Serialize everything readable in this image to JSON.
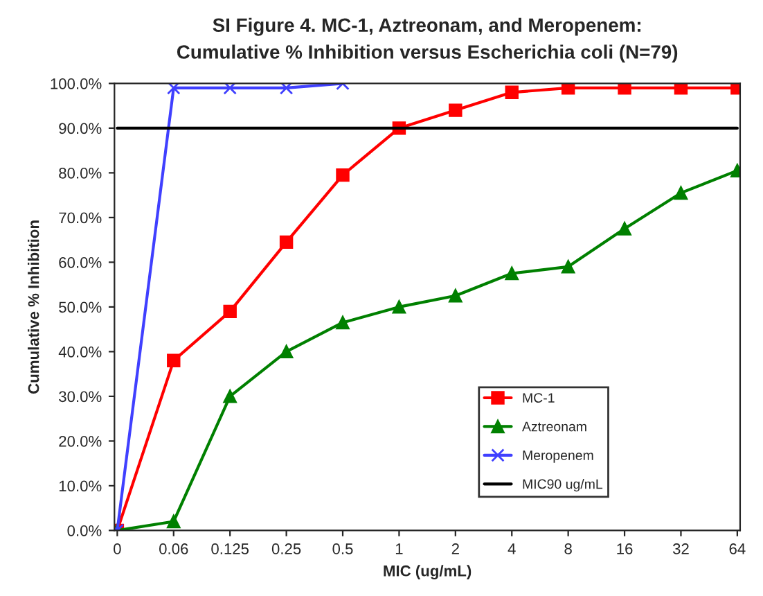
{
  "chart_data": {
    "type": "line",
    "title": "SI Figure 4. MC-1, Aztreonam, and Meropenem:",
    "subtitle": "Cumulative % Inhibition versus Escherichia coli (N=79)",
    "xlabel": "MIC (ug/mL)",
    "ylabel": "Cumulative % Inhibition",
    "categories": [
      "0",
      "0.06",
      "0.125",
      "0.25",
      "0.5",
      "1",
      "2",
      "4",
      "8",
      "16",
      "32",
      "64"
    ],
    "series": [
      {
        "name": "MC-1",
        "color": "#ff0000",
        "marker": "square",
        "values": [
          0,
          38,
          49,
          64.5,
          79.5,
          90,
          94,
          98,
          99,
          99,
          99,
          99
        ]
      },
      {
        "name": "Aztreonam",
        "color": "#008000",
        "marker": "triangle",
        "values": [
          0,
          2,
          30,
          40,
          46.5,
          50,
          52.5,
          57.5,
          59,
          67.5,
          75.5,
          80.5
        ]
      },
      {
        "name": "Meropenem",
        "color": "#4040ff",
        "marker": "cross",
        "values": [
          0,
          99,
          99,
          99,
          100,
          null,
          null,
          null,
          null,
          null,
          null,
          null
        ]
      },
      {
        "name": "MIC90 ug/mL",
        "color": "#000000",
        "marker": "none",
        "values": [
          90,
          90,
          90,
          90,
          90,
          90,
          90,
          90,
          90,
          90,
          90,
          90
        ]
      }
    ],
    "ylim": [
      0,
      100
    ],
    "yticks": [
      {
        "value": 0,
        "label": "0.0%"
      },
      {
        "value": 10,
        "label": "10.0%"
      },
      {
        "value": 20,
        "label": "20.0%"
      },
      {
        "value": 30,
        "label": "30.0%"
      },
      {
        "value": 40,
        "label": "40.0%"
      },
      {
        "value": 50,
        "label": "50.0%"
      },
      {
        "value": 60,
        "label": "60.0%"
      },
      {
        "value": 70,
        "label": "70.0%"
      },
      {
        "value": 80,
        "label": "80.0%"
      },
      {
        "value": 90,
        "label": "90.0%"
      },
      {
        "value": 100,
        "label": "100.0%"
      }
    ],
    "grid": false,
    "legend": "bottom right"
  }
}
